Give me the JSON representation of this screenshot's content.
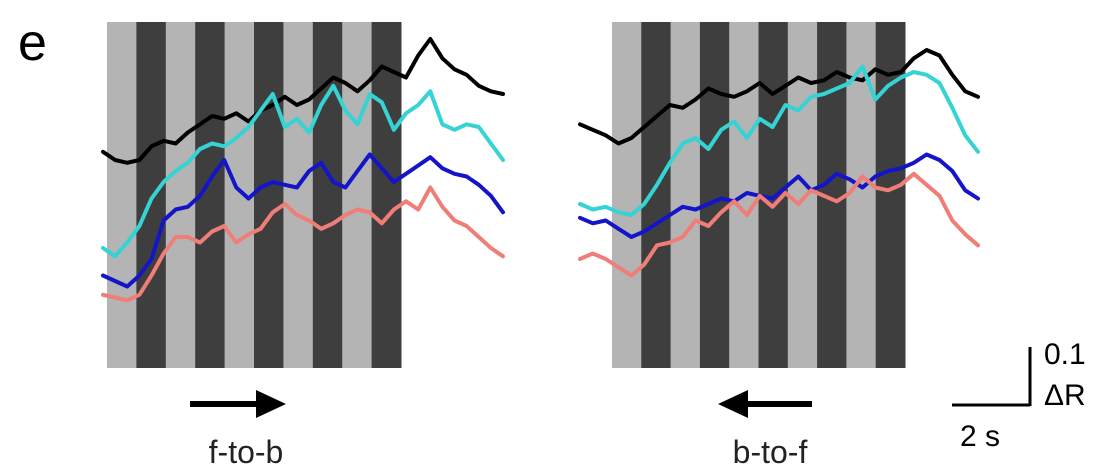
{
  "figure": {
    "panel_letter": "e",
    "colors": {
      "light_stripe": "#b4b4b4",
      "dark_stripe": "#3e3e3e",
      "background": "#ffffff"
    },
    "scale_bar": {
      "amplitude_value": "0.1",
      "amplitude_unit": "ΔR",
      "time_label": "2 s"
    },
    "panels": [
      {
        "id": "left",
        "condition_label": "f-to-b",
        "arrow_direction": "right",
        "traces": [
          {
            "color": "#000000",
            "values": [
              0.83,
              0.8,
              0.79,
              0.8,
              0.85,
              0.87,
              0.86,
              0.9,
              0.93,
              0.96,
              0.95,
              0.97,
              0.94,
              0.98,
              1.0,
              1.03,
              1.0,
              1.02,
              1.06,
              1.1,
              1.08,
              1.05,
              1.09,
              1.14,
              1.12,
              1.1,
              1.18,
              1.24,
              1.17,
              1.13,
              1.11,
              1.07,
              1.05,
              1.04
            ]
          },
          {
            "color": "#35d3d3",
            "values": [
              0.48,
              0.45,
              0.5,
              0.56,
              0.66,
              0.72,
              0.76,
              0.79,
              0.84,
              0.86,
              0.85,
              0.88,
              0.92,
              0.98,
              1.04,
              0.92,
              0.95,
              0.9,
              1.0,
              1.07,
              0.98,
              0.93,
              1.04,
              1.01,
              0.91,
              0.97,
              1.0,
              1.05,
              0.93,
              0.91,
              0.93,
              0.92,
              0.86,
              0.8
            ]
          },
          {
            "color": "#1414c8",
            "values": [
              0.38,
              0.36,
              0.34,
              0.38,
              0.44,
              0.58,
              0.62,
              0.63,
              0.67,
              0.74,
              0.8,
              0.7,
              0.66,
              0.7,
              0.72,
              0.71,
              0.7,
              0.76,
              0.79,
              0.72,
              0.7,
              0.76,
              0.82,
              0.77,
              0.72,
              0.75,
              0.78,
              0.81,
              0.77,
              0.75,
              0.74,
              0.71,
              0.67,
              0.61
            ]
          },
          {
            "color": "#f07e78",
            "values": [
              0.31,
              0.3,
              0.29,
              0.31,
              0.38,
              0.46,
              0.52,
              0.52,
              0.5,
              0.54,
              0.56,
              0.5,
              0.53,
              0.55,
              0.61,
              0.64,
              0.6,
              0.58,
              0.55,
              0.57,
              0.6,
              0.62,
              0.61,
              0.57,
              0.62,
              0.65,
              0.62,
              0.7,
              0.63,
              0.58,
              0.56,
              0.52,
              0.48,
              0.45
            ]
          }
        ]
      },
      {
        "id": "right",
        "condition_label": "b-to-f",
        "arrow_direction": "left",
        "traces": [
          {
            "color": "#000000",
            "values": [
              0.93,
              0.91,
              0.89,
              0.86,
              0.88,
              0.92,
              0.96,
              1.0,
              0.99,
              1.02,
              1.06,
              1.04,
              1.03,
              1.05,
              1.08,
              1.04,
              1.07,
              1.1,
              1.08,
              1.09,
              1.12,
              1.1,
              1.09,
              1.13,
              1.11,
              1.12,
              1.17,
              1.2,
              1.18,
              1.11,
              1.05,
              1.03
            ]
          },
          {
            "color": "#35d3d3",
            "values": [
              0.64,
              0.62,
              0.63,
              0.61,
              0.6,
              0.64,
              0.71,
              0.79,
              0.86,
              0.88,
              0.84,
              0.91,
              0.94,
              0.88,
              0.95,
              0.92,
              1.0,
              0.98,
              1.03,
              1.04,
              1.06,
              1.08,
              1.14,
              1.02,
              1.07,
              1.1,
              1.12,
              1.11,
              1.08,
              0.99,
              0.89,
              0.83
            ]
          },
          {
            "color": "#1414c8",
            "values": [
              0.59,
              0.57,
              0.58,
              0.55,
              0.52,
              0.54,
              0.57,
              0.6,
              0.63,
              0.62,
              0.64,
              0.66,
              0.65,
              0.68,
              0.67,
              0.66,
              0.7,
              0.74,
              0.69,
              0.71,
              0.75,
              0.73,
              0.7,
              0.74,
              0.76,
              0.77,
              0.79,
              0.82,
              0.8,
              0.76,
              0.69,
              0.66
            ]
          },
          {
            "color": "#f07e78",
            "values": [
              0.44,
              0.46,
              0.44,
              0.41,
              0.38,
              0.42,
              0.49,
              0.5,
              0.52,
              0.58,
              0.56,
              0.61,
              0.65,
              0.6,
              0.67,
              0.63,
              0.68,
              0.64,
              0.69,
              0.67,
              0.65,
              0.68,
              0.74,
              0.7,
              0.69,
              0.71,
              0.75,
              0.71,
              0.67,
              0.58,
              0.53,
              0.49
            ]
          }
        ]
      }
    ]
  }
}
